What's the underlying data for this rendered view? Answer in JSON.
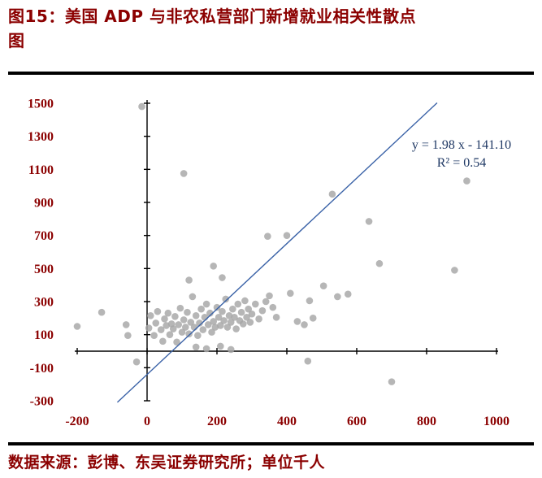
{
  "header": {
    "title_line1": "图15：美国 ADP 与非农私营部门新增就业相关性散点",
    "title_line2": "图"
  },
  "footer": {
    "source": "数据来源：彭博、东吴证券研究所；单位千人"
  },
  "colors": {
    "maroon": "#8B0000",
    "navy": "#1F3864",
    "trend_blue": "#3A62A7",
    "point_gray": "#A6A6A6",
    "axis_black": "#000000"
  },
  "chart_data": {
    "type": "scatter",
    "title": "图15：美国 ADP 与非农私营部门新增就业相关性散点图",
    "xlabel": "",
    "ylabel": "",
    "xlim": [
      -200,
      1000
    ],
    "ylim": [
      -300,
      1500
    ],
    "x_ticks": [
      -200,
      0,
      200,
      400,
      600,
      800,
      1000
    ],
    "y_ticks": [
      -300,
      -100,
      100,
      300,
      500,
      700,
      900,
      1100,
      1300,
      1500
    ],
    "grid": false,
    "legend": "none",
    "annotation": {
      "line1": "y = 1.98 x - 141.10",
      "line2": "R² = 0.54"
    },
    "trendline": {
      "slope": 1.98,
      "intercept": -141.1,
      "x_start": -85,
      "x_end": 830
    },
    "point_color": "#A6A6A6",
    "points": [
      [
        -200,
        150
      ],
      [
        -130,
        235
      ],
      [
        -60,
        160
      ],
      [
        -55,
        95
      ],
      [
        -30,
        -65
      ],
      [
        -15,
        1480
      ],
      [
        5,
        140
      ],
      [
        10,
        215
      ],
      [
        20,
        95
      ],
      [
        25,
        170
      ],
      [
        30,
        240
      ],
      [
        40,
        130
      ],
      [
        45,
        60
      ],
      [
        50,
        195
      ],
      [
        55,
        155
      ],
      [
        60,
        230
      ],
      [
        65,
        100
      ],
      [
        70,
        165
      ],
      [
        75,
        135
      ],
      [
        80,
        210
      ],
      [
        85,
        55
      ],
      [
        90,
        160
      ],
      [
        95,
        260
      ],
      [
        100,
        115
      ],
      [
        105,
        1075
      ],
      [
        105,
        190
      ],
      [
        110,
        145
      ],
      [
        115,
        235
      ],
      [
        120,
        430
      ],
      [
        120,
        105
      ],
      [
        125,
        175
      ],
      [
        130,
        330
      ],
      [
        135,
        145
      ],
      [
        140,
        215
      ],
      [
        140,
        25
      ],
      [
        145,
        95
      ],
      [
        150,
        170
      ],
      [
        155,
        255
      ],
      [
        160,
        130
      ],
      [
        165,
        205
      ],
      [
        170,
        285
      ],
      [
        170,
        15
      ],
      [
        175,
        160
      ],
      [
        180,
        230
      ],
      [
        185,
        115
      ],
      [
        190,
        515
      ],
      [
        190,
        180
      ],
      [
        195,
        145
      ],
      [
        200,
        265
      ],
      [
        205,
        205
      ],
      [
        210,
        155
      ],
      [
        210,
        30
      ],
      [
        215,
        445
      ],
      [
        215,
        240
      ],
      [
        220,
        185
      ],
      [
        225,
        315
      ],
      [
        230,
        145
      ],
      [
        235,
        215
      ],
      [
        240,
        175
      ],
      [
        240,
        10
      ],
      [
        245,
        255
      ],
      [
        250,
        205
      ],
      [
        255,
        135
      ],
      [
        260,
        285
      ],
      [
        265,
        185
      ],
      [
        270,
        235
      ],
      [
        275,
        165
      ],
      [
        280,
        305
      ],
      [
        285,
        205
      ],
      [
        290,
        255
      ],
      [
        295,
        175
      ],
      [
        300,
        225
      ],
      [
        310,
        285
      ],
      [
        320,
        195
      ],
      [
        330,
        245
      ],
      [
        340,
        300
      ],
      [
        345,
        695
      ],
      [
        350,
        335
      ],
      [
        360,
        265
      ],
      [
        370,
        205
      ],
      [
        400,
        700
      ],
      [
        410,
        350
      ],
      [
        430,
        180
      ],
      [
        450,
        160
      ],
      [
        460,
        -60
      ],
      [
        465,
        305
      ],
      [
        475,
        200
      ],
      [
        505,
        395
      ],
      [
        530,
        950
      ],
      [
        545,
        330
      ],
      [
        575,
        345
      ],
      [
        635,
        785
      ],
      [
        665,
        530
      ],
      [
        700,
        -185
      ],
      [
        880,
        490
      ],
      [
        915,
        1030
      ]
    ]
  }
}
